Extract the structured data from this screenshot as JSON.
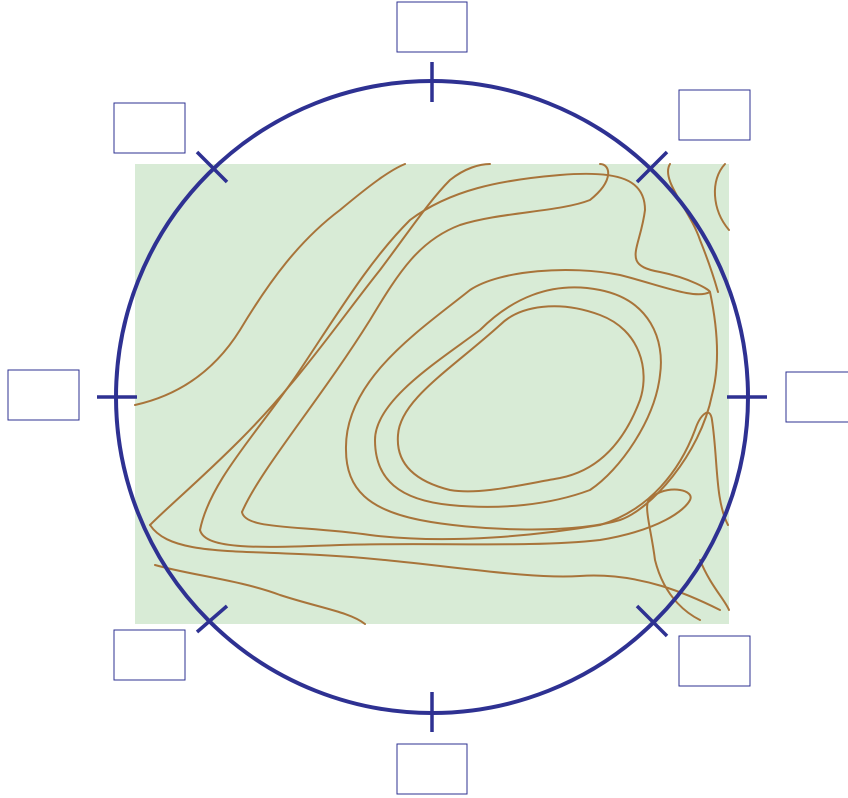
{
  "map": {
    "land_color": "#d8ebd6",
    "contour_color": "#a8743a",
    "compass_color": "#2e3192"
  },
  "direction_labels": {
    "top": "",
    "top_right": "",
    "right": "",
    "bottom_right": "",
    "bottom": "",
    "bottom_left": "",
    "left": "",
    "top_left": ""
  }
}
